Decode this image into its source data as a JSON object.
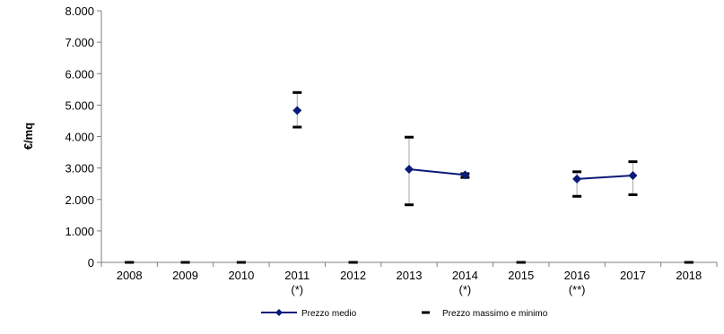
{
  "chart_data": {
    "type": "line",
    "title": "",
    "xlabel": "",
    "ylabel": "€/mq",
    "categories": [
      "2008",
      "2009",
      "2010",
      "2011",
      "2012",
      "2013",
      "2014",
      "2015",
      "2016",
      "2017",
      "2018"
    ],
    "category_notes": [
      "",
      "",
      "",
      "(*)",
      "",
      "",
      "(*)",
      "",
      "(**)",
      "",
      ""
    ],
    "y_ticks": [
      "0",
      "1.000",
      "2.000",
      "3.000",
      "4.000",
      "5.000",
      "6.000",
      "7.000",
      "8.000"
    ],
    "ylim": [
      0,
      8000
    ],
    "grid": false,
    "legend_position": "bottom",
    "series": [
      {
        "name": "Prezzo medio",
        "type": "line",
        "color": "#0a1a78",
        "marker": "diamond",
        "values": [
          null,
          null,
          null,
          4830,
          null,
          2960,
          2780,
          null,
          2650,
          2760,
          null
        ]
      },
      {
        "name": "Prezzo massimo e minimo",
        "type": "range",
        "color": "#000000",
        "marker": "dash",
        "max": [
          0,
          0,
          0,
          5400,
          0,
          3980,
          2820,
          0,
          2880,
          3200,
          0
        ],
        "min": [
          0,
          0,
          0,
          4300,
          0,
          1830,
          2700,
          0,
          2100,
          2150,
          0
        ]
      }
    ]
  }
}
